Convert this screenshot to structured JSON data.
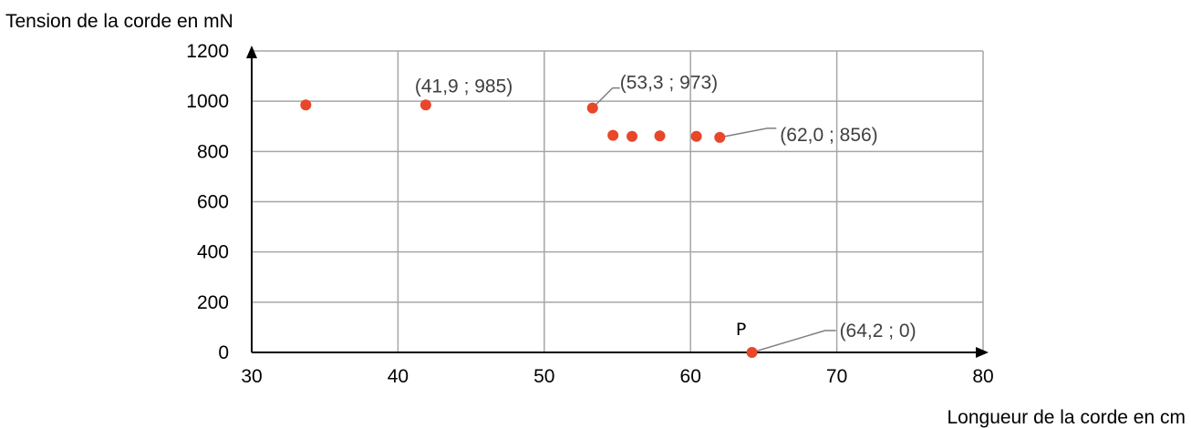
{
  "chart_data": {
    "type": "scatter",
    "ylabel": "Tension de la corde en mN",
    "xlabel": "Longueur de la corde en cm",
    "xlim": [
      30,
      80
    ],
    "ylim": [
      0,
      1200
    ],
    "xticks": [
      30,
      40,
      50,
      60,
      70,
      80
    ],
    "yticks": [
      0,
      200,
      400,
      600,
      800,
      1000,
      1200
    ],
    "xtick_labels": [
      "30",
      "40",
      "50",
      "60",
      "70",
      "80"
    ],
    "ytick_labels": [
      "0",
      "200",
      "400",
      "600",
      "800",
      "1000",
      "1200"
    ],
    "grid": true,
    "marker_color": "#E8472A",
    "points": [
      {
        "x": 33.7,
        "y": 985
      },
      {
        "x": 41.9,
        "y": 985
      },
      {
        "x": 53.3,
        "y": 973
      },
      {
        "x": 54.7,
        "y": 864
      },
      {
        "x": 56.0,
        "y": 860
      },
      {
        "x": 57.9,
        "y": 862
      },
      {
        "x": 60.4,
        "y": 860
      },
      {
        "x": 62.0,
        "y": 856
      },
      {
        "x": 64.2,
        "y": 0
      }
    ],
    "annotations": [
      {
        "text": "(41,9 ; 985)",
        "x": 41.9,
        "y": 985,
        "leader": false
      },
      {
        "text": "(53,3 ; 973)",
        "x": 53.3,
        "y": 973,
        "leader": true
      },
      {
        "text": "(62,0 ; 856)",
        "x": 62.0,
        "y": 856,
        "leader": true
      },
      {
        "text": "(64,2 ; 0)",
        "x": 64.2,
        "y": 0,
        "leader": true
      }
    ],
    "point_tag": {
      "text": "P",
      "x": 64.2,
      "y": 0
    }
  }
}
